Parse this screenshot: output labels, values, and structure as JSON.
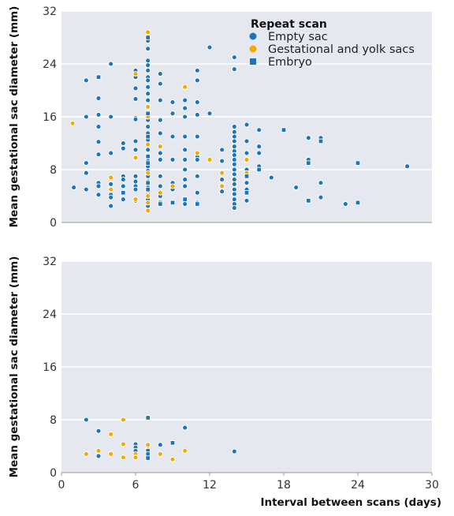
{
  "chart_data": [
    {
      "type": "scatter",
      "title": "",
      "xlabel": "",
      "ylabel": "Mean gestational sac diameter (mm)",
      "xlim": [
        0,
        30
      ],
      "ylim": [
        0,
        32
      ],
      "yticks": [
        "0",
        "8",
        "16",
        "24",
        "32"
      ],
      "grid": "horizontal",
      "legend": {
        "title": "Repeat scan",
        "placement": "top-right",
        "entries": [
          {
            "label": "Empty sac",
            "series": "empty"
          },
          {
            "label": "Gestational and yolk sacs",
            "series": "yolk"
          },
          {
            "label": "Embryo",
            "series": "embryo"
          }
        ]
      },
      "series": [
        {
          "name": "Empty sac",
          "key": "empty",
          "marker": "circle",
          "color": "#1b75bb",
          "points": [
            [
              1,
              5.3
            ],
            [
              2,
              21.5
            ],
            [
              2,
              16
            ],
            [
              2,
              9
            ],
            [
              2,
              7.5
            ],
            [
              2,
              5
            ],
            [
              3,
              18.8
            ],
            [
              3,
              16.3
            ],
            [
              3,
              14.5
            ],
            [
              3,
              12.2
            ],
            [
              3,
              10.3
            ],
            [
              3,
              6
            ],
            [
              3,
              5.5
            ],
            [
              3,
              4.2
            ],
            [
              4,
              24
            ],
            [
              4,
              16
            ],
            [
              4,
              10.5
            ],
            [
              4,
              5.8
            ],
            [
              4,
              5
            ],
            [
              4,
              4.2
            ],
            [
              4,
              3.8
            ],
            [
              4,
              2.5
            ],
            [
              5,
              12
            ],
            [
              5,
              11.2
            ],
            [
              5,
              7
            ],
            [
              5,
              6.5
            ],
            [
              5,
              5.5
            ],
            [
              5,
              4.5
            ],
            [
              5,
              3.5
            ],
            [
              6,
              23
            ],
            [
              6,
              22
            ],
            [
              6,
              20.3
            ],
            [
              6,
              18.7
            ],
            [
              6,
              15.8
            ],
            [
              6,
              15.6
            ],
            [
              6,
              12.3
            ],
            [
              6,
              11
            ],
            [
              6,
              9.7
            ],
            [
              6,
              7
            ],
            [
              6,
              6.2
            ],
            [
              6,
              5.5
            ],
            [
              6,
              5
            ],
            [
              6,
              3.3
            ],
            [
              7,
              28
            ],
            [
              7,
              27.5
            ],
            [
              7,
              26.3
            ],
            [
              7,
              24.5
            ],
            [
              7,
              23.8
            ],
            [
              7,
              23
            ],
            [
              7,
              22
            ],
            [
              7,
              21.5
            ],
            [
              7,
              20.5
            ],
            [
              7,
              19.5
            ],
            [
              7,
              18.5
            ],
            [
              7,
              17.5
            ],
            [
              7,
              16.5
            ],
            [
              7,
              15.5
            ],
            [
              7,
              14.5
            ],
            [
              7,
              13.5
            ],
            [
              7,
              12.5
            ],
            [
              7,
              11.8
            ],
            [
              7,
              11
            ],
            [
              7,
              10
            ],
            [
              7,
              9.3
            ],
            [
              7,
              8.5
            ],
            [
              7,
              7.8
            ],
            [
              7,
              7
            ],
            [
              7,
              6.2
            ],
            [
              7,
              5.3
            ],
            [
              7,
              4.5
            ],
            [
              7,
              3.5
            ],
            [
              7,
              2.5
            ],
            [
              8,
              22.5
            ],
            [
              8,
              21
            ],
            [
              8,
              18.5
            ],
            [
              8,
              15.5
            ],
            [
              8,
              13.5
            ],
            [
              8,
              10.5
            ],
            [
              8,
              9.5
            ],
            [
              8,
              7
            ],
            [
              8,
              5.5
            ],
            [
              8,
              4
            ],
            [
              8,
              3
            ],
            [
              9,
              18.2
            ],
            [
              9,
              16.5
            ],
            [
              9,
              13
            ],
            [
              9,
              9.5
            ],
            [
              9,
              6
            ],
            [
              9,
              5
            ],
            [
              9,
              3
            ],
            [
              10,
              18.5
            ],
            [
              10,
              17.3
            ],
            [
              10,
              16
            ],
            [
              10,
              13
            ],
            [
              10,
              11
            ],
            [
              10,
              9.5
            ],
            [
              10,
              8
            ],
            [
              10,
              6.5
            ],
            [
              10,
              5.5
            ],
            [
              10,
              3.5
            ],
            [
              10,
              2.8
            ],
            [
              11,
              23
            ],
            [
              11,
              21.5
            ],
            [
              11,
              18.2
            ],
            [
              11,
              16.3
            ],
            [
              11,
              13
            ],
            [
              11,
              10
            ],
            [
              11,
              9.5
            ],
            [
              11,
              7
            ],
            [
              11,
              4.5
            ],
            [
              11,
              3
            ],
            [
              12,
              26.5
            ],
            [
              12,
              16.5
            ],
            [
              13,
              11
            ],
            [
              13,
              9.3
            ],
            [
              13,
              6.5
            ],
            [
              13,
              4.7
            ],
            [
              14,
              25
            ],
            [
              14,
              23.2
            ],
            [
              14,
              14.5
            ],
            [
              14,
              13.7
            ],
            [
              14,
              13
            ],
            [
              14,
              12.3
            ],
            [
              14,
              11.5
            ],
            [
              14,
              10.8
            ],
            [
              14,
              10.2
            ],
            [
              14,
              9.5
            ],
            [
              14,
              8.8
            ],
            [
              14,
              8
            ],
            [
              14,
              7.3
            ],
            [
              14,
              6.5
            ],
            [
              14,
              5.8
            ],
            [
              14,
              5
            ],
            [
              14,
              4.3
            ],
            [
              14,
              3.5
            ],
            [
              14,
              2.8
            ],
            [
              14,
              2.2
            ],
            [
              15,
              14.8
            ],
            [
              15,
              12.3
            ],
            [
              15,
              10.5
            ],
            [
              15,
              9.5
            ],
            [
              15,
              8
            ],
            [
              15,
              6
            ],
            [
              15,
              5
            ],
            [
              15,
              3.3
            ],
            [
              16,
              14
            ],
            [
              16,
              11.5
            ],
            [
              16,
              10.5
            ],
            [
              16,
              8.5
            ],
            [
              17,
              6.8
            ],
            [
              19,
              5.3
            ],
            [
              20,
              12.8
            ],
            [
              20,
              9.5
            ],
            [
              21,
              12.8
            ],
            [
              21,
              6
            ],
            [
              21,
              3.8
            ],
            [
              23,
              2.8
            ],
            [
              28,
              8.5
            ]
          ]
        },
        {
          "name": "Gestational and yolk sacs",
          "key": "yolk",
          "marker": "circle",
          "color": "#f5a800",
          "points": [
            [
              0.9,
              15
            ],
            [
              4,
              6.8
            ],
            [
              4,
              5
            ],
            [
              5,
              4.5
            ],
            [
              6,
              22.5
            ],
            [
              6,
              9.8
            ],
            [
              6,
              3.5
            ],
            [
              7,
              28.8
            ],
            [
              7,
              17.5
            ],
            [
              7,
              16
            ],
            [
              7,
              11.8
            ],
            [
              7,
              7.5
            ],
            [
              7,
              6
            ],
            [
              7,
              4.8
            ],
            [
              7,
              4
            ],
            [
              7,
              3
            ],
            [
              7,
              1.8
            ],
            [
              8,
              11.5
            ],
            [
              8,
              4.5
            ],
            [
              9,
              5.5
            ],
            [
              10,
              20.5
            ],
            [
              11,
              10.5
            ],
            [
              12,
              9.5
            ],
            [
              13,
              7.5
            ],
            [
              13,
              5.5
            ],
            [
              15,
              9.5
            ],
            [
              15,
              7.5
            ]
          ]
        },
        {
          "name": "Embryo",
          "key": "embryo",
          "marker": "square",
          "color": "#1b75bb",
          "points": [
            [
              3,
              22
            ],
            [
              5,
              4.5
            ],
            [
              7,
              28
            ],
            [
              7,
              16.5
            ],
            [
              7,
              13
            ],
            [
              7,
              10
            ],
            [
              7,
              9
            ],
            [
              7,
              6
            ],
            [
              7,
              5
            ],
            [
              8,
              3
            ],
            [
              8,
              2.8
            ],
            [
              9,
              3
            ],
            [
              10,
              3.5
            ],
            [
              11,
              2.8
            ],
            [
              15,
              7
            ],
            [
              15,
              4.5
            ],
            [
              16,
              8
            ],
            [
              18,
              14
            ],
            [
              20,
              9
            ],
            [
              20,
              3.3
            ],
            [
              21,
              12.3
            ],
            [
              24,
              9
            ],
            [
              24,
              3
            ]
          ]
        }
      ]
    },
    {
      "type": "scatter",
      "title": "",
      "xlabel": "Interval between scans (days)",
      "ylabel": "Mean gestational sac diameter (mm)",
      "xlim": [
        0,
        30
      ],
      "ylim": [
        0,
        32
      ],
      "xticks": [
        "0",
        "6",
        "12",
        "18",
        "24",
        "30"
      ],
      "yticks": [
        "0",
        "8",
        "16",
        "24",
        "32"
      ],
      "grid": "horizontal",
      "series": [
        {
          "name": "Empty sac",
          "key": "empty",
          "marker": "circle",
          "color": "#1b75bb",
          "points": [
            [
              2,
              8
            ],
            [
              3,
              6.3
            ],
            [
              3,
              2.5
            ],
            [
              6,
              4.3
            ],
            [
              6,
              3.8
            ],
            [
              6,
              3.3
            ],
            [
              8,
              4.2
            ],
            [
              10,
              6.8
            ],
            [
              14,
              3.2
            ]
          ]
        },
        {
          "name": "Gestational and yolk sacs",
          "key": "yolk",
          "marker": "circle",
          "color": "#f5a800",
          "points": [
            [
              2,
              2.8
            ],
            [
              3,
              3.3
            ],
            [
              4,
              5.8
            ],
            [
              4,
              2.8
            ],
            [
              5,
              8
            ],
            [
              5,
              4.3
            ],
            [
              5,
              2.3
            ],
            [
              6,
              2.8
            ],
            [
              6,
              2.3
            ],
            [
              7,
              4.2
            ],
            [
              7,
              3.5
            ],
            [
              7,
              3
            ],
            [
              8,
              2.8
            ],
            [
              9,
              2
            ],
            [
              10,
              3.3
            ]
          ]
        },
        {
          "name": "Embryo",
          "key": "embryo",
          "marker": "square",
          "color": "#1b75bb",
          "points": [
            [
              7,
              8.3
            ],
            [
              7,
              3.3
            ],
            [
              7,
              2.8
            ],
            [
              7,
              2.2
            ],
            [
              9,
              4.5
            ]
          ]
        }
      ]
    }
  ]
}
